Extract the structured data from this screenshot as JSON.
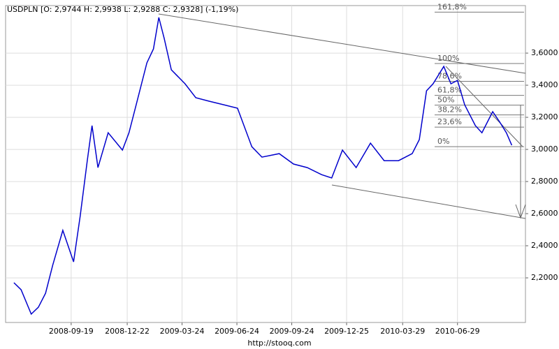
{
  "chart_data": {
    "type": "line",
    "title": "USDPLN [O: 2,9744  H: 2,9938  L: 2,9288  C: 2,9328] (-1,19%)",
    "source": "http://stooq.com",
    "x": [
      "2008-06-15",
      "2008-06-27",
      "2008-07-14",
      "2008-07-26",
      "2008-08-07",
      "2008-08-19",
      "2008-09-05",
      "2008-09-23",
      "2008-10-04",
      "2008-10-16",
      "2008-10-24",
      "2008-11-03",
      "2008-11-20",
      "2008-12-14",
      "2008-12-25",
      "2009-01-06",
      "2009-01-24",
      "2009-02-04",
      "2009-02-13",
      "2009-02-22",
      "2009-03-06",
      "2009-03-29",
      "2009-04-16",
      "2009-05-09",
      "2009-06-02",
      "2009-06-25",
      "2009-07-19",
      "2009-08-05",
      "2009-09-03",
      "2009-09-27",
      "2009-10-20",
      "2009-11-13",
      "2009-11-30",
      "2009-12-18",
      "2010-01-10",
      "2010-02-03",
      "2010-02-26",
      "2010-03-22",
      "2010-04-14",
      "2010-04-26",
      "2010-05-08",
      "2010-05-19",
      "2010-06-06",
      "2010-06-18",
      "2010-06-29",
      "2010-07-11",
      "2010-07-29",
      "2010-08-09",
      "2010-08-27",
      "2010-09-08",
      "2010-09-19",
      "2010-09-28"
    ],
    "series": [
      {
        "name": "USDPLN",
        "color": "#0000cc",
        "values": [
          2.17,
          2.126,
          1.974,
          2.017,
          2.104,
          2.278,
          2.496,
          2.3,
          2.583,
          2.93,
          3.148,
          2.887,
          3.104,
          2.996,
          3.104,
          3.278,
          3.539,
          3.626,
          3.822,
          3.691,
          3.496,
          3.409,
          3.322,
          3.3,
          3.278,
          3.257,
          3.017,
          2.952,
          2.974,
          2.909,
          2.887,
          2.843,
          2.822,
          2.996,
          2.887,
          3.039,
          2.93,
          2.93,
          2.974,
          3.061,
          3.365,
          3.409,
          3.517,
          3.409,
          3.43,
          3.278,
          3.148,
          3.104,
          3.235,
          3.17,
          3.104,
          3.026
        ]
      }
    ],
    "xlim": [
      "2008-06-01",
      "2010-10-21"
    ],
    "xticks": [
      "2008-09-19",
      "2008-12-22",
      "2009-03-24",
      "2009-06-24",
      "2009-09-24",
      "2009-12-25",
      "2010-03-29",
      "2010-06-29"
    ],
    "ylim": [
      1.922,
      3.896
    ],
    "yticks": [
      {
        "value": 2.2,
        "label": "2,2000"
      },
      {
        "value": 2.4,
        "label": "2,4000"
      },
      {
        "value": 2.6,
        "label": "2,6000"
      },
      {
        "value": 2.8,
        "label": "2,8000"
      },
      {
        "value": 3.0,
        "label": "3,0000"
      },
      {
        "value": 3.2,
        "label": "3,2000"
      },
      {
        "value": 3.4,
        "label": "3,4000"
      },
      {
        "value": 3.6,
        "label": "3,6000"
      }
    ],
    "grid": true,
    "fibonacci": [
      {
        "label": "161,8%",
        "price": 3.855
      },
      {
        "label": "100%",
        "price": 3.535
      },
      {
        "label": "78,6%",
        "price": 3.424
      },
      {
        "label": "61,8%",
        "price": 3.337
      },
      {
        "label": "50%",
        "price": 3.276
      },
      {
        "label": "38,2%",
        "price": 3.215
      },
      {
        "label": "23,6%",
        "price": 3.139
      },
      {
        "label": "0%",
        "price": 3.017
      }
    ]
  }
}
